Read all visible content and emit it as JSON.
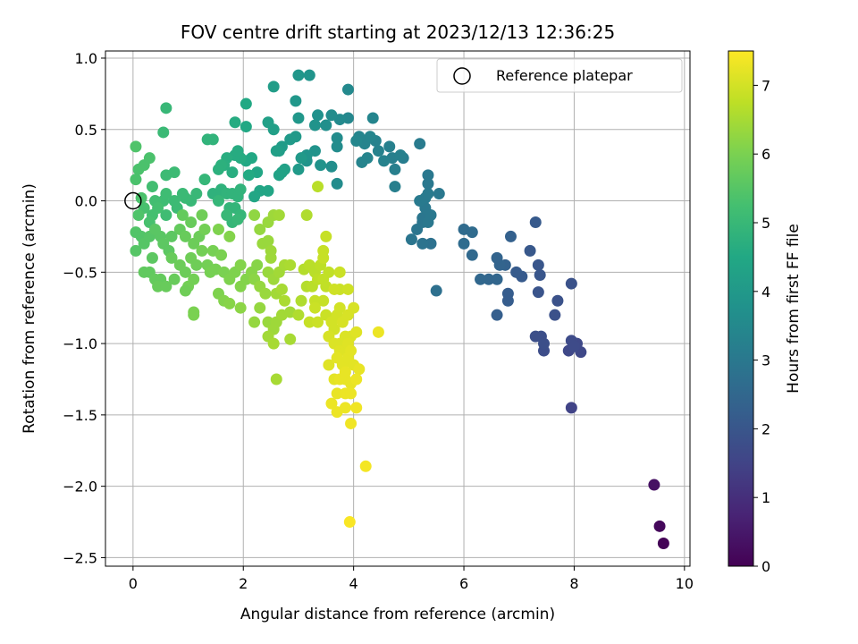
{
  "chart_data": {
    "type": "scatter",
    "title": "FOV centre drift starting at 2023/12/13 12:36:25",
    "xlabel": "Angular distance from reference (arcmin)",
    "ylabel": "Rotation from reference (arcmin)",
    "xlim": [
      -0.5,
      10.1
    ],
    "ylim": [
      -2.56,
      1.05
    ],
    "x_ticks": [
      0,
      2,
      4,
      6,
      8,
      10
    ],
    "y_ticks": [
      -2.5,
      -2.0,
      -1.5,
      -1.0,
      -0.5,
      0.0,
      0.5,
      1.0
    ],
    "x_tick_labels": [
      "0",
      "2",
      "4",
      "6",
      "8",
      "10"
    ],
    "y_tick_labels": [
      "−2.5",
      "−2.0",
      "−1.5",
      "−1.0",
      "−0.5",
      "0.0",
      "0.5",
      "1.0"
    ],
    "grid": true,
    "colormap": "viridis",
    "colorbar": {
      "label": "Hours from first FF file",
      "range": [
        0,
        7.5
      ],
      "ticks": [
        0,
        1,
        2,
        3,
        4,
        5,
        6,
        7
      ],
      "tick_labels": [
        "0",
        "1",
        "2",
        "3",
        "4",
        "5",
        "6",
        "7"
      ]
    },
    "legend": {
      "placement": "top-right",
      "entries": [
        {
          "label": "Reference platepar",
          "marker": "open-circle"
        }
      ]
    },
    "reference_point": {
      "x": 0,
      "y": 0
    },
    "points": [
      [
        9.62,
        -2.4,
        0.05
      ],
      [
        9.55,
        -2.28,
        0.15
      ],
      [
        9.45,
        -1.99,
        0.35
      ],
      [
        7.95,
        -1.45,
        1.5
      ],
      [
        8.12,
        -1.06,
        1.6
      ],
      [
        7.9,
        -1.05,
        1.6
      ],
      [
        8.05,
        -1.0,
        1.65
      ],
      [
        7.95,
        -0.98,
        1.7
      ],
      [
        8.0,
        -1.02,
        1.7
      ],
      [
        7.45,
        -1.05,
        1.75
      ],
      [
        7.3,
        -0.95,
        1.8
      ],
      [
        7.4,
        -0.95,
        1.8
      ],
      [
        7.45,
        -1.0,
        1.8
      ],
      [
        7.65,
        -0.8,
        1.85
      ],
      [
        7.7,
        -0.7,
        1.9
      ],
      [
        7.35,
        -0.64,
        1.95
      ],
      [
        7.35,
        -0.45,
        2.0
      ],
      [
        7.38,
        -0.52,
        2.0
      ],
      [
        7.95,
        -0.58,
        1.9
      ],
      [
        7.2,
        -0.35,
        2.05
      ],
      [
        7.3,
        -0.15,
        2.1
      ],
      [
        7.05,
        -0.53,
        2.1
      ],
      [
        6.95,
        -0.5,
        2.15
      ],
      [
        6.8,
        -0.65,
        2.2
      ],
      [
        6.8,
        -0.7,
        2.2
      ],
      [
        6.6,
        -0.8,
        2.25
      ],
      [
        6.85,
        -0.25,
        2.3
      ],
      [
        6.75,
        -0.45,
        2.35
      ],
      [
        6.65,
        -0.45,
        2.4
      ],
      [
        6.6,
        -0.4,
        2.4
      ],
      [
        6.45,
        -0.55,
        2.45
      ],
      [
        6.6,
        -0.55,
        2.45
      ],
      [
        6.3,
        -0.55,
        2.5
      ],
      [
        6.15,
        -0.38,
        2.55
      ],
      [
        6.0,
        -0.2,
        2.6
      ],
      [
        6.0,
        -0.3,
        2.65
      ],
      [
        6.15,
        -0.22,
        2.6
      ],
      [
        5.5,
        -0.63,
        2.75
      ],
      [
        5.4,
        -0.3,
        2.8
      ],
      [
        5.25,
        -0.3,
        2.85
      ],
      [
        5.05,
        -0.27,
        2.9
      ],
      [
        5.15,
        -0.2,
        2.9
      ],
      [
        5.25,
        -0.15,
        2.95
      ],
      [
        5.25,
        -0.12,
        2.95
      ],
      [
        5.4,
        -0.1,
        3.0
      ],
      [
        5.35,
        -0.15,
        3.0
      ],
      [
        5.3,
        -0.05,
        3.0
      ],
      [
        5.2,
        0.0,
        3.05
      ],
      [
        5.3,
        0.02,
        3.05
      ],
      [
        5.35,
        0.05,
        3.05
      ],
      [
        5.55,
        0.05,
        3.0
      ],
      [
        5.35,
        0.12,
        3.0
      ],
      [
        5.35,
        0.18,
        3.0
      ],
      [
        5.2,
        0.4,
        3.1
      ],
      [
        4.9,
        0.3,
        3.15
      ],
      [
        4.75,
        0.22,
        3.2
      ],
      [
        4.7,
        0.3,
        3.2
      ],
      [
        4.75,
        0.1,
        3.2
      ],
      [
        4.85,
        0.32,
        3.25
      ],
      [
        4.65,
        0.38,
        3.25
      ],
      [
        4.55,
        0.28,
        3.3
      ],
      [
        4.45,
        0.35,
        3.3
      ],
      [
        4.4,
        0.42,
        3.3
      ],
      [
        4.25,
        0.3,
        3.35
      ],
      [
        4.15,
        0.27,
        3.35
      ],
      [
        4.2,
        0.4,
        3.35
      ],
      [
        4.3,
        0.45,
        3.4
      ],
      [
        4.1,
        0.45,
        3.4
      ],
      [
        4.05,
        0.42,
        3.45
      ],
      [
        3.9,
        0.58,
        3.45
      ],
      [
        4.35,
        0.58,
        3.4
      ],
      [
        3.9,
        0.78,
        3.5
      ],
      [
        3.75,
        0.57,
        3.55
      ],
      [
        3.7,
        0.44,
        3.6
      ],
      [
        3.7,
        0.38,
        3.6
      ],
      [
        3.7,
        0.12,
        3.6
      ],
      [
        3.6,
        0.24,
        3.65
      ],
      [
        3.6,
        0.6,
        3.6
      ],
      [
        3.5,
        0.53,
        3.7
      ],
      [
        3.35,
        0.6,
        3.75
      ],
      [
        3.3,
        0.53,
        3.8
      ],
      [
        3.4,
        0.25,
        3.8
      ],
      [
        3.3,
        0.35,
        3.8
      ],
      [
        3.15,
        0.32,
        3.85
      ],
      [
        3.15,
        0.28,
        3.85
      ],
      [
        3.2,
        0.88,
        3.85
      ],
      [
        3.0,
        0.88,
        3.9
      ],
      [
        2.95,
        0.7,
        3.95
      ],
      [
        3.0,
        0.58,
        3.95
      ],
      [
        2.95,
        0.45,
        4.0
      ],
      [
        3.05,
        0.3,
        4.0
      ],
      [
        2.85,
        0.43,
        4.05
      ],
      [
        3.0,
        0.22,
        4.05
      ],
      [
        2.7,
        0.38,
        4.1
      ],
      [
        2.65,
        0.35,
        4.15
      ],
      [
        2.55,
        0.5,
        4.2
      ],
      [
        2.6,
        0.35,
        4.2
      ],
      [
        2.55,
        0.8,
        4.15
      ],
      [
        2.45,
        0.55,
        4.25
      ],
      [
        2.75,
        0.22,
        4.25
      ],
      [
        2.65,
        0.18,
        4.3
      ],
      [
        2.7,
        0.2,
        4.3
      ],
      [
        2.3,
        0.07,
        4.4
      ],
      [
        2.45,
        0.07,
        4.4
      ],
      [
        2.2,
        0.03,
        4.45
      ],
      [
        2.25,
        0.2,
        4.45
      ],
      [
        2.15,
        0.3,
        4.5
      ],
      [
        2.05,
        0.28,
        4.5
      ],
      [
        2.1,
        0.18,
        4.55
      ],
      [
        2.05,
        0.52,
        4.5
      ],
      [
        2.05,
        0.68,
        4.5
      ],
      [
        1.95,
        0.3,
        4.6
      ],
      [
        1.85,
        0.32,
        4.6
      ],
      [
        1.9,
        0.35,
        4.6
      ],
      [
        1.8,
        0.2,
        4.65
      ],
      [
        1.7,
        0.3,
        4.65
      ],
      [
        1.65,
        0.25,
        4.7
      ],
      [
        1.6,
        0.25,
        4.75
      ],
      [
        1.55,
        0.22,
        4.75
      ],
      [
        1.85,
        0.55,
        4.6
      ],
      [
        1.45,
        0.05,
        4.8
      ],
      [
        1.55,
        0.05,
        4.8
      ],
      [
        1.6,
        0.08,
        4.8
      ],
      [
        1.7,
        0.05,
        4.85
      ],
      [
        1.8,
        0.05,
        4.85
      ],
      [
        1.9,
        0.03,
        4.85
      ],
      [
        1.95,
        0.08,
        4.85
      ],
      [
        1.75,
        -0.05,
        4.9
      ],
      [
        1.85,
        -0.05,
        4.9
      ],
      [
        1.95,
        -0.1,
        4.95
      ],
      [
        1.8,
        -0.15,
        4.95
      ],
      [
        1.55,
        0.0,
        4.95
      ],
      [
        1.7,
        -0.1,
        5.0
      ],
      [
        1.9,
        -0.13,
        5.0
      ],
      [
        1.35,
        0.43,
        4.85
      ],
      [
        1.45,
        0.43,
        4.85
      ],
      [
        1.3,
        0.15,
        4.95
      ],
      [
        1.15,
        0.05,
        5.0
      ],
      [
        1.05,
        0.0,
        5.0
      ],
      [
        0.95,
        0.02,
        5.05
      ],
      [
        0.9,
        0.05,
        5.05
      ],
      [
        0.8,
        -0.05,
        5.1
      ],
      [
        0.75,
        0.0,
        5.1
      ],
      [
        0.6,
        -0.1,
        5.15
      ],
      [
        0.55,
        0.0,
        5.15
      ],
      [
        0.6,
        0.05,
        5.15
      ],
      [
        0.6,
        0.18,
        5.1
      ],
      [
        0.75,
        0.2,
        5.1
      ],
      [
        0.6,
        0.65,
        5.0
      ],
      [
        0.55,
        0.48,
        5.05
      ],
      [
        0.35,
        0.1,
        5.2
      ],
      [
        0.4,
        0.0,
        5.2
      ],
      [
        0.45,
        -0.05,
        5.25
      ],
      [
        0.35,
        -0.1,
        5.25
      ],
      [
        0.3,
        -0.15,
        5.3
      ],
      [
        0.2,
        -0.05,
        5.3
      ],
      [
        0.15,
        0.02,
        5.35
      ],
      [
        0.05,
        0.15,
        5.35
      ],
      [
        0.1,
        0.22,
        5.35
      ],
      [
        0.2,
        0.25,
        5.35
      ],
      [
        0.3,
        0.3,
        5.35
      ],
      [
        0.05,
        0.38,
        5.4
      ],
      [
        0.1,
        -0.1,
        5.4
      ],
      [
        0.05,
        -0.22,
        5.45
      ],
      [
        0.15,
        -0.25,
        5.45
      ],
      [
        0.05,
        -0.35,
        5.5
      ],
      [
        0.2,
        -0.3,
        5.5
      ],
      [
        0.3,
        -0.25,
        5.5
      ],
      [
        0.4,
        -0.2,
        5.55
      ],
      [
        0.5,
        -0.25,
        5.55
      ],
      [
        0.55,
        -0.3,
        5.6
      ],
      [
        0.65,
        -0.35,
        5.6
      ],
      [
        0.35,
        -0.4,
        5.6
      ],
      [
        0.2,
        -0.5,
        5.65
      ],
      [
        0.3,
        -0.5,
        5.65
      ],
      [
        0.4,
        -0.55,
        5.7
      ],
      [
        0.5,
        -0.55,
        5.7
      ],
      [
        0.45,
        -0.6,
        5.75
      ],
      [
        0.6,
        -0.6,
        5.75
      ],
      [
        0.75,
        -0.55,
        5.75
      ],
      [
        0.7,
        -0.4,
        5.75
      ],
      [
        0.85,
        -0.45,
        5.8
      ],
      [
        0.95,
        -0.5,
        5.8
      ],
      [
        0.85,
        -0.2,
        5.7
      ],
      [
        0.9,
        -0.1,
        5.7
      ],
      [
        0.95,
        -0.25,
        5.75
      ],
      [
        1.05,
        -0.15,
        5.75
      ],
      [
        1.1,
        -0.3,
        5.8
      ],
      [
        1.2,
        -0.25,
        5.8
      ],
      [
        1.05,
        -0.4,
        5.85
      ],
      [
        1.15,
        -0.45,
        5.85
      ],
      [
        1.25,
        -0.35,
        5.9
      ],
      [
        1.35,
        -0.45,
        5.9
      ],
      [
        1.4,
        -0.5,
        5.95
      ],
      [
        1.5,
        -0.48,
        5.95
      ],
      [
        1.45,
        -0.35,
        5.95
      ],
      [
        1.6,
        -0.38,
        6.0
      ],
      [
        1.65,
        -0.5,
        6.0
      ],
      [
        1.75,
        -0.55,
        6.05
      ],
      [
        1.85,
        -0.5,
        6.05
      ],
      [
        1.95,
        -0.45,
        6.1
      ],
      [
        1.95,
        -0.6,
        6.1
      ],
      [
        2.05,
        -0.55,
        6.1
      ],
      [
        2.15,
        -0.5,
        6.15
      ],
      [
        2.25,
        -0.45,
        6.15
      ],
      [
        2.2,
        -0.55,
        6.2
      ],
      [
        1.0,
        -0.6,
        5.9
      ],
      [
        1.1,
        -0.55,
        5.9
      ],
      [
        0.95,
        -0.63,
        5.85
      ],
      [
        1.55,
        -0.65,
        6.05
      ],
      [
        1.65,
        -0.7,
        6.1
      ],
      [
        1.75,
        -0.72,
        6.15
      ],
      [
        1.95,
        -0.75,
        6.2
      ],
      [
        1.1,
        -0.78,
        6.0
      ],
      [
        1.1,
        -0.8,
        6.0
      ],
      [
        1.75,
        -0.25,
        6.1
      ],
      [
        1.55,
        -0.2,
        6.05
      ],
      [
        1.3,
        -0.2,
        5.9
      ],
      [
        1.25,
        -0.1,
        5.85
      ],
      [
        0.7,
        -0.25,
        5.6
      ],
      [
        2.2,
        -0.85,
        6.3
      ],
      [
        2.3,
        -0.75,
        6.3
      ],
      [
        2.45,
        -0.85,
        6.35
      ],
      [
        2.55,
        -0.9,
        6.4
      ],
      [
        2.6,
        -0.85,
        6.4
      ],
      [
        2.7,
        -0.8,
        6.45
      ],
      [
        2.85,
        -0.78,
        6.45
      ],
      [
        2.45,
        -0.95,
        6.45
      ],
      [
        2.55,
        -1.0,
        6.5
      ],
      [
        2.6,
        -1.25,
        6.5
      ],
      [
        2.85,
        -0.97,
        6.5
      ],
      [
        2.3,
        -0.6,
        6.3
      ],
      [
        2.4,
        -0.65,
        6.35
      ],
      [
        2.45,
        -0.5,
        6.35
      ],
      [
        2.55,
        -0.55,
        6.4
      ],
      [
        2.65,
        -0.5,
        6.45
      ],
      [
        2.6,
        -0.65,
        6.45
      ],
      [
        2.7,
        -0.62,
        6.5
      ],
      [
        2.75,
        -0.45,
        6.5
      ],
      [
        2.85,
        -0.45,
        6.55
      ],
      [
        2.75,
        -0.7,
        6.55
      ],
      [
        2.5,
        -0.4,
        6.4
      ],
      [
        2.35,
        -0.3,
        6.35
      ],
      [
        2.45,
        -0.28,
        6.35
      ],
      [
        2.3,
        -0.2,
        6.3
      ],
      [
        2.45,
        -0.15,
        6.35
      ],
      [
        2.55,
        -0.1,
        6.4
      ],
      [
        2.65,
        -0.1,
        6.45
      ],
      [
        2.2,
        -0.1,
        6.25
      ],
      [
        2.5,
        -0.35,
        6.4
      ],
      [
        3.0,
        -0.8,
        6.6
      ],
      [
        3.05,
        -0.7,
        6.6
      ],
      [
        3.15,
        -0.6,
        6.65
      ],
      [
        3.1,
        -0.48,
        6.65
      ],
      [
        3.2,
        -0.45,
        6.7
      ],
      [
        3.3,
        -0.5,
        6.7
      ],
      [
        3.25,
        -0.6,
        6.7
      ],
      [
        3.35,
        -0.55,
        6.75
      ],
      [
        3.4,
        -0.45,
        6.75
      ],
      [
        3.45,
        -0.55,
        6.8
      ],
      [
        3.5,
        -0.6,
        6.8
      ],
      [
        3.55,
        -0.5,
        6.8
      ],
      [
        3.45,
        -0.7,
        6.85
      ],
      [
        3.3,
        -0.7,
        6.85
      ],
      [
        3.2,
        -0.85,
        6.85
      ],
      [
        3.35,
        -0.85,
        6.9
      ],
      [
        3.3,
        -0.75,
        6.9
      ],
      [
        3.5,
        -0.8,
        6.9
      ],
      [
        3.45,
        -0.4,
        6.85
      ],
      [
        3.45,
        -0.35,
        6.85
      ],
      [
        3.5,
        -0.25,
        6.85
      ],
      [
        3.75,
        -0.5,
        6.9
      ],
      [
        3.75,
        -0.62,
        6.9
      ],
      [
        3.65,
        -0.62,
        6.95
      ],
      [
        3.9,
        -0.62,
        6.95
      ],
      [
        3.15,
        -0.1,
        6.6
      ],
      [
        3.35,
        0.1,
        6.7
      ],
      [
        3.6,
        -0.85,
        7.0
      ],
      [
        3.65,
        -0.9,
        7.0
      ],
      [
        3.7,
        -0.8,
        7.0
      ],
      [
        3.75,
        -0.75,
        7.0
      ],
      [
        3.8,
        -0.85,
        7.05
      ],
      [
        3.9,
        -0.8,
        7.05
      ],
      [
        4.0,
        -0.75,
        7.05
      ],
      [
        3.55,
        -0.95,
        7.05
      ],
      [
        3.65,
        -1.0,
        7.1
      ],
      [
        3.75,
        -1.0,
        7.1
      ],
      [
        3.85,
        -0.95,
        7.1
      ],
      [
        3.95,
        -0.95,
        7.1
      ],
      [
        4.05,
        -0.92,
        7.15
      ],
      [
        3.75,
        -1.05,
        7.15
      ],
      [
        3.85,
        -1.05,
        7.15
      ],
      [
        3.55,
        -1.15,
        7.15
      ],
      [
        3.7,
        -1.1,
        7.2
      ],
      [
        3.8,
        -1.15,
        7.2
      ],
      [
        3.9,
        -1.1,
        7.2
      ],
      [
        4.0,
        -1.15,
        7.2
      ],
      [
        4.1,
        -1.18,
        7.25
      ],
      [
        3.65,
        -1.25,
        7.2
      ],
      [
        3.75,
        -1.25,
        7.25
      ],
      [
        3.85,
        -1.25,
        7.25
      ],
      [
        3.95,
        -1.28,
        7.25
      ],
      [
        4.05,
        -1.25,
        7.3
      ],
      [
        3.7,
        -1.35,
        7.25
      ],
      [
        3.85,
        -1.35,
        7.3
      ],
      [
        3.95,
        -1.35,
        7.3
      ],
      [
        3.6,
        -1.42,
        7.3
      ],
      [
        3.7,
        -1.48,
        7.3
      ],
      [
        3.85,
        -1.45,
        7.3
      ],
      [
        4.05,
        -1.45,
        7.35
      ],
      [
        3.95,
        -1.56,
        7.35
      ],
      [
        4.22,
        -1.86,
        7.4
      ],
      [
        3.93,
        -2.25,
        7.45
      ],
      [
        3.85,
        -1.2,
        7.25
      ],
      [
        4.45,
        -0.92,
        7.3
      ],
      [
        3.9,
        -1.0,
        7.15
      ],
      [
        3.95,
        -1.05,
        7.2
      ]
    ]
  }
}
